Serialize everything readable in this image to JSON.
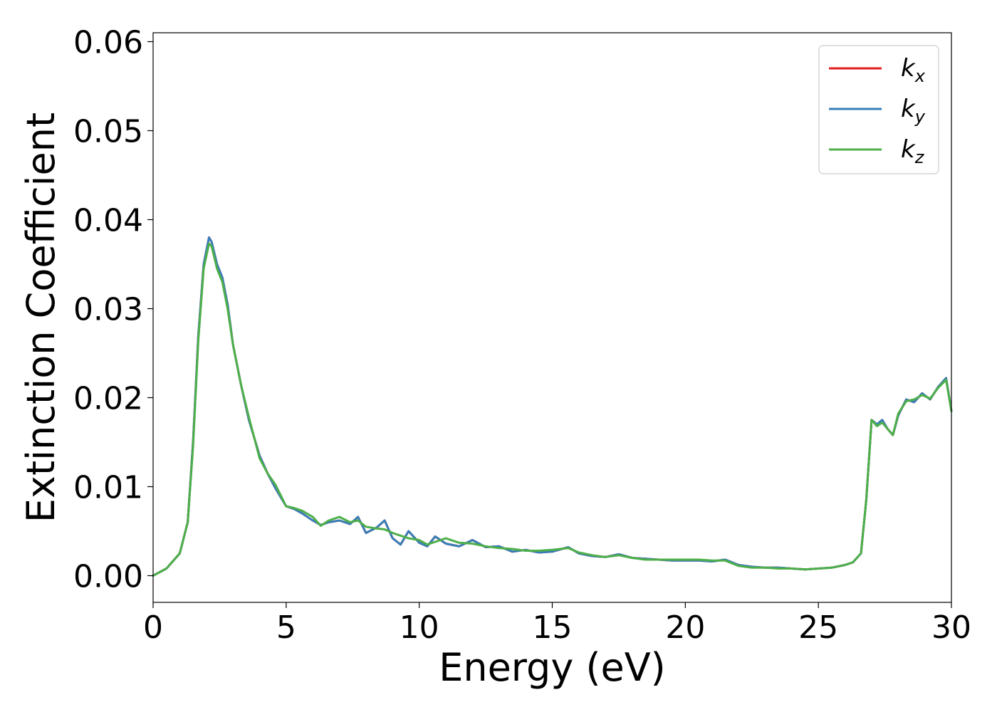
{
  "chart_data": {
    "type": "line",
    "xlabel": "Energy (eV)",
    "ylabel": "Extinction Coefficient",
    "xlim": [
      0,
      30
    ],
    "ylim": [
      -0.003,
      0.061
    ],
    "xticks": [
      0,
      5,
      10,
      15,
      20,
      25,
      30
    ],
    "xtick_labels": [
      "0",
      "5",
      "10",
      "15",
      "20",
      "25",
      "30"
    ],
    "yticks": [
      0.0,
      0.01,
      0.02,
      0.03,
      0.04,
      0.05,
      0.06
    ],
    "ytick_labels": [
      "0.00",
      "0.01",
      "0.02",
      "0.03",
      "0.04",
      "0.05",
      "0.06"
    ],
    "grid": false,
    "legend_position": "top-right",
    "series": [
      {
        "name": "k_x",
        "legend_base": "k",
        "legend_sub": "x",
        "color": "#e41a1c",
        "x": [
          0,
          0.5,
          1.0,
          1.3,
          1.5,
          1.7,
          1.9,
          2.1,
          2.2,
          2.4,
          2.6,
          2.8,
          3.0,
          3.3,
          3.6,
          4.0,
          4.3,
          4.6,
          5.0,
          5.3,
          5.6,
          6.0,
          6.3,
          6.6,
          7.0,
          7.4,
          7.7,
          8.0,
          8.4,
          8.7,
          9.0,
          9.3,
          9.6,
          10.0,
          10.3,
          10.6,
          11.0,
          11.5,
          12.0,
          12.5,
          13.0,
          13.5,
          14.0,
          14.5,
          15.0,
          15.6,
          16.0,
          16.5,
          17.0,
          17.5,
          18.0,
          18.5,
          19.0,
          19.5,
          20.0,
          20.5,
          21.0,
          21.5,
          22.0,
          22.5,
          23.0,
          23.5,
          24.0,
          24.5,
          25.0,
          25.5,
          26.0,
          26.3,
          26.6,
          26.8,
          27.0,
          27.2,
          27.4,
          27.6,
          27.8,
          28.0,
          28.3,
          28.6,
          28.9,
          29.2,
          29.5,
          29.8,
          30.0
        ],
        "values": [
          0.0,
          0.0008,
          0.0025,
          0.006,
          0.015,
          0.027,
          0.035,
          0.038,
          0.0375,
          0.035,
          0.0335,
          0.0305,
          0.026,
          0.0215,
          0.0175,
          0.0135,
          0.0115,
          0.0098,
          0.0078,
          0.0075,
          0.007,
          0.0062,
          0.0057,
          0.006,
          0.0062,
          0.0058,
          0.0066,
          0.0048,
          0.0054,
          0.0062,
          0.0042,
          0.0035,
          0.005,
          0.0037,
          0.0033,
          0.0044,
          0.0036,
          0.0033,
          0.004,
          0.0032,
          0.0033,
          0.0027,
          0.0029,
          0.0026,
          0.0027,
          0.0032,
          0.0025,
          0.0022,
          0.0021,
          0.0024,
          0.002,
          0.0019,
          0.0018,
          0.0017,
          0.0017,
          0.0017,
          0.0016,
          0.0018,
          0.0012,
          0.001,
          0.0009,
          0.0009,
          0.0008,
          0.0007,
          0.0008,
          0.0009,
          0.0012,
          0.0015,
          0.0025,
          0.0085,
          0.0175,
          0.017,
          0.0175,
          0.0165,
          0.0158,
          0.018,
          0.0198,
          0.0195,
          0.0205,
          0.0198,
          0.0212,
          0.0222,
          0.0185
        ]
      },
      {
        "name": "k_y",
        "legend_base": "k",
        "legend_sub": "y",
        "color": "#377eb8",
        "x": [
          0,
          0.5,
          1.0,
          1.3,
          1.5,
          1.7,
          1.9,
          2.1,
          2.2,
          2.4,
          2.6,
          2.8,
          3.0,
          3.3,
          3.6,
          4.0,
          4.3,
          4.6,
          5.0,
          5.3,
          5.6,
          6.0,
          6.3,
          6.6,
          7.0,
          7.4,
          7.7,
          8.0,
          8.4,
          8.7,
          9.0,
          9.3,
          9.6,
          10.0,
          10.3,
          10.6,
          11.0,
          11.5,
          12.0,
          12.5,
          13.0,
          13.5,
          14.0,
          14.5,
          15.0,
          15.6,
          16.0,
          16.5,
          17.0,
          17.5,
          18.0,
          18.5,
          19.0,
          19.5,
          20.0,
          20.5,
          21.0,
          21.5,
          22.0,
          22.5,
          23.0,
          23.5,
          24.0,
          24.5,
          25.0,
          25.5,
          26.0,
          26.3,
          26.6,
          26.8,
          27.0,
          27.2,
          27.4,
          27.6,
          27.8,
          28.0,
          28.3,
          28.6,
          28.9,
          29.2,
          29.5,
          29.8,
          30.0
        ],
        "values": [
          0.0,
          0.0008,
          0.0025,
          0.006,
          0.015,
          0.027,
          0.035,
          0.038,
          0.0375,
          0.035,
          0.0335,
          0.0305,
          0.026,
          0.0215,
          0.0175,
          0.0135,
          0.0115,
          0.0098,
          0.0078,
          0.0075,
          0.007,
          0.0062,
          0.0057,
          0.006,
          0.0062,
          0.0058,
          0.0066,
          0.0048,
          0.0054,
          0.0062,
          0.0042,
          0.0035,
          0.005,
          0.0037,
          0.0033,
          0.0044,
          0.0036,
          0.0033,
          0.004,
          0.0032,
          0.0033,
          0.0027,
          0.0029,
          0.0026,
          0.0027,
          0.0032,
          0.0025,
          0.0022,
          0.0021,
          0.0024,
          0.002,
          0.0019,
          0.0018,
          0.0017,
          0.0017,
          0.0017,
          0.0016,
          0.0018,
          0.0012,
          0.001,
          0.0009,
          0.0009,
          0.0008,
          0.0007,
          0.0008,
          0.0009,
          0.0012,
          0.0015,
          0.0025,
          0.0085,
          0.0175,
          0.017,
          0.0175,
          0.0165,
          0.0158,
          0.018,
          0.0198,
          0.0195,
          0.0205,
          0.0198,
          0.0212,
          0.0222,
          0.0185
        ]
      },
      {
        "name": "k_z",
        "legend_base": "k",
        "legend_sub": "z",
        "color": "#4daf4a",
        "x": [
          0,
          0.5,
          1.0,
          1.3,
          1.5,
          1.7,
          1.9,
          2.1,
          2.2,
          2.4,
          2.6,
          2.8,
          3.0,
          3.3,
          3.6,
          4.0,
          4.3,
          4.6,
          5.0,
          5.3,
          5.6,
          6.0,
          6.3,
          6.6,
          7.0,
          7.4,
          7.7,
          8.0,
          8.4,
          8.7,
          9.0,
          9.3,
          9.6,
          10.0,
          10.3,
          10.6,
          11.0,
          11.5,
          12.0,
          12.5,
          13.0,
          13.5,
          14.0,
          14.5,
          15.0,
          15.6,
          16.0,
          16.5,
          17.0,
          17.5,
          18.0,
          18.5,
          19.0,
          19.5,
          20.0,
          20.5,
          21.0,
          21.5,
          22.0,
          22.5,
          23.0,
          23.5,
          24.0,
          24.5,
          25.0,
          25.5,
          26.0,
          26.3,
          26.6,
          26.8,
          27.0,
          27.2,
          27.4,
          27.6,
          27.8,
          28.0,
          28.3,
          28.6,
          28.9,
          29.2,
          29.5,
          29.8,
          30.0
        ],
        "values": [
          0.0,
          0.0008,
          0.0025,
          0.006,
          0.0145,
          0.0265,
          0.0345,
          0.0373,
          0.037,
          0.0345,
          0.033,
          0.03,
          0.026,
          0.0215,
          0.0178,
          0.0132,
          0.0115,
          0.0102,
          0.0078,
          0.0076,
          0.0073,
          0.0066,
          0.0056,
          0.0062,
          0.0066,
          0.006,
          0.0062,
          0.0055,
          0.0053,
          0.0052,
          0.0048,
          0.0045,
          0.0042,
          0.004,
          0.0035,
          0.0038,
          0.0042,
          0.0037,
          0.0036,
          0.0033,
          0.0031,
          0.003,
          0.0028,
          0.0028,
          0.0029,
          0.0031,
          0.0026,
          0.0023,
          0.0021,
          0.0023,
          0.002,
          0.0018,
          0.0018,
          0.0018,
          0.0018,
          0.0018,
          0.0017,
          0.0017,
          0.0011,
          0.0009,
          0.0009,
          0.0008,
          0.0008,
          0.0007,
          0.0008,
          0.0009,
          0.0012,
          0.0015,
          0.0025,
          0.0085,
          0.0175,
          0.0168,
          0.0172,
          0.0165,
          0.0158,
          0.0182,
          0.0196,
          0.0198,
          0.0203,
          0.0199,
          0.0211,
          0.022,
          0.0185
        ]
      }
    ]
  }
}
